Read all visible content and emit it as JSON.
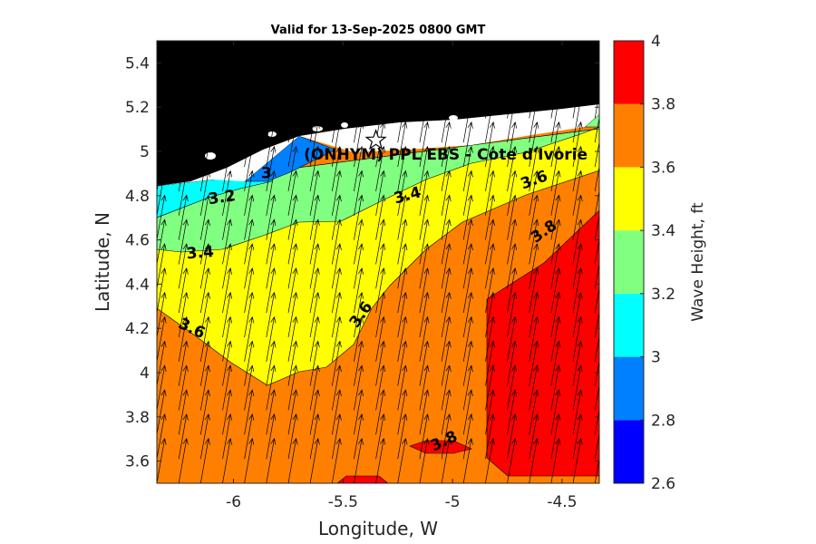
{
  "chart_data": {
    "type": "heatmap",
    "title": "Valid for 13-Sep-2025 0800 GMT",
    "xlabel": "Longitude, W",
    "ylabel": "Latitude, N",
    "xlim": [
      -6.35,
      -4.33
    ],
    "ylim": [
      3.5,
      5.5
    ],
    "xticks": [
      -6,
      -5.5,
      -5,
      -4.5
    ],
    "xtick_labels": [
      "-6",
      "-5.5",
      "-5",
      "-4.5"
    ],
    "yticks": [
      3.6,
      3.8,
      4.0,
      4.2,
      4.4,
      4.6,
      4.8,
      5.0,
      5.2,
      5.4
    ],
    "ytick_labels": [
      "3.6",
      "3.8",
      "4",
      "4.2",
      "4.4",
      "4.6",
      "4.8",
      "5",
      "5.2",
      "5.4"
    ],
    "colorbar": {
      "label": "Wave Height, ft",
      "range": [
        2.6,
        4.0
      ],
      "levels": [
        2.6,
        2.8,
        3.0,
        3.2,
        3.4,
        3.6,
        3.8,
        4.0
      ],
      "tick_labels": [
        "2.6",
        "2.8",
        "3",
        "3.2",
        "3.4",
        "3.6",
        "3.8",
        "4"
      ],
      "colors": [
        "#0000ff",
        "#0080ff",
        "#00ffff",
        "#80ff80",
        "#ffff00",
        "#ff8000",
        "#ff0000"
      ]
    },
    "land_color": "#000000",
    "coast_band_color": "#ffffff",
    "annotation": "(ONHYM) PPL EBS - Cote d'Ivorie",
    "site_marker": {
      "lon": -5.35,
      "lat": 5.05,
      "symbol": "star"
    },
    "contour_labels": [
      {
        "text": "3",
        "lon": -5.85,
        "lat": 4.88,
        "angle": 0
      },
      {
        "text": "3.2",
        "lon": -6.05,
        "lat": 4.77,
        "angle": -8
      },
      {
        "text": "3.4",
        "lon": -6.15,
        "lat": 4.52,
        "angle": -5
      },
      {
        "text": "3.4",
        "lon": -5.2,
        "lat": 4.78,
        "angle": -15
      },
      {
        "text": "3.6",
        "lon": -6.2,
        "lat": 4.18,
        "angle": 25
      },
      {
        "text": "3.6",
        "lon": -5.4,
        "lat": 4.25,
        "angle": -55
      },
      {
        "text": "3.6",
        "lon": -4.62,
        "lat": 4.85,
        "angle": -20
      },
      {
        "text": "3.8",
        "lon": -4.57,
        "lat": 4.62,
        "angle": -35
      },
      {
        "text": "3.8",
        "lon": -5.03,
        "lat": 3.67,
        "angle": -25
      }
    ],
    "wave_direction": {
      "description": "arrows point toward NNE (~10 deg east of north) across the domain",
      "bearing_deg": 10,
      "lon_start": -6.35,
      "lon_step": 0.1,
      "lat_start": 3.5,
      "lat_step": 0.11
    }
  }
}
